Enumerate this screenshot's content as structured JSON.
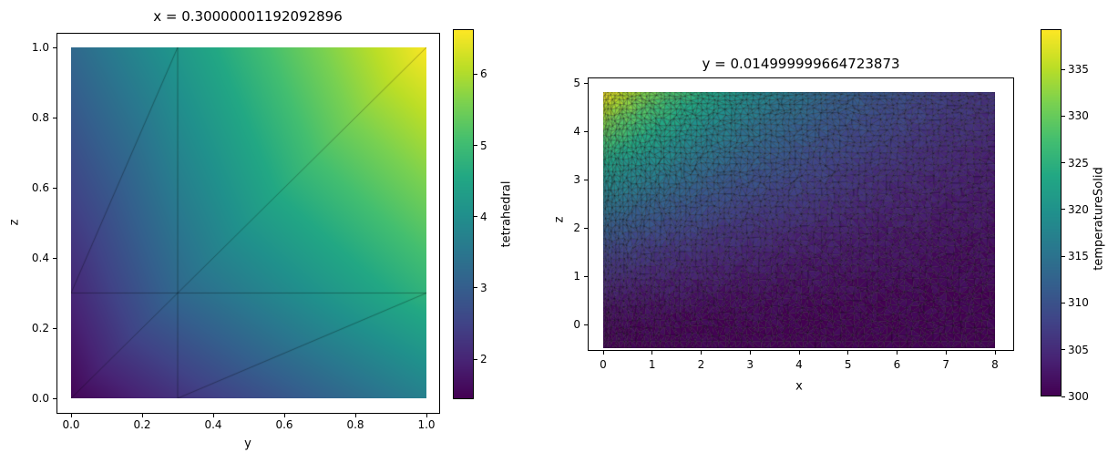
{
  "figure": {
    "background": "#ffffff",
    "text_color": "#000000"
  },
  "chart_data": [
    {
      "id": "left-slice-plot",
      "type": "heatmap",
      "title": "x = 0.30000001192092896",
      "xlabel": "y",
      "ylabel": "z",
      "xlim": [
        0.0,
        1.0
      ],
      "ylim": [
        0.0,
        1.0
      ],
      "xtick_values": [
        0.0,
        0.2,
        0.4,
        0.6,
        0.8,
        1.0
      ],
      "xtick_labels": [
        "0.0",
        "0.2",
        "0.4",
        "0.6",
        "0.8",
        "1.0"
      ],
      "ytick_values": [
        0.0,
        0.2,
        0.4,
        0.6,
        0.8,
        1.0
      ],
      "ytick_labels": [
        "0.0",
        "0.2",
        "0.4",
        "0.6",
        "0.8",
        "1.0"
      ],
      "colormap": "viridis",
      "grid": false,
      "colorbar": {
        "label": "tetrahedral",
        "vmin": 1.44,
        "vmax": 6.63,
        "tick_values": [
          2,
          3,
          4,
          5,
          6
        ],
        "tick_labels": [
          "2",
          "3",
          "4",
          "5",
          "6"
        ]
      },
      "mesh_nodes": [
        {
          "y": 0.0,
          "z": 0.0,
          "value": 1.5
        },
        {
          "y": 0.3,
          "z": 0.0,
          "value": 2.2
        },
        {
          "y": 1.0,
          "z": 0.0,
          "value": 3.7
        },
        {
          "y": 0.0,
          "z": 0.3,
          "value": 2.0
        },
        {
          "y": 0.3,
          "z": 0.3,
          "value": 3.2
        },
        {
          "y": 1.0,
          "z": 0.3,
          "value": 4.8
        },
        {
          "y": 0.0,
          "z": 1.0,
          "value": 3.2
        },
        {
          "y": 0.3,
          "z": 1.0,
          "value": 4.2
        },
        {
          "y": 1.0,
          "z": 1.0,
          "value": 6.6
        }
      ],
      "mesh_triangles": [
        [
          0,
          1,
          4
        ],
        [
          0,
          4,
          3
        ],
        [
          1,
          2,
          5
        ],
        [
          1,
          5,
          4
        ],
        [
          3,
          4,
          7
        ],
        [
          3,
          7,
          6
        ],
        [
          4,
          5,
          8
        ],
        [
          4,
          8,
          7
        ]
      ],
      "mesh_edges": [
        [
          [
            0.0,
            0.3
          ],
          [
            1.0,
            0.3
          ]
        ],
        [
          [
            0.3,
            0.0
          ],
          [
            0.3,
            1.0
          ]
        ],
        [
          [
            0.0,
            0.0
          ],
          [
            1.0,
            1.0
          ]
        ],
        [
          [
            0.0,
            0.3
          ],
          [
            0.3,
            1.0
          ]
        ],
        [
          [
            0.3,
            0.0
          ],
          [
            1.0,
            0.3
          ]
        ]
      ]
    },
    {
      "id": "right-slice-plot",
      "type": "trimesh-heatmap",
      "title": "y = 0.014999999664723873",
      "xlabel": "x",
      "ylabel": "z",
      "xlim": [
        0,
        8
      ],
      "ylim": [
        -0.55,
        5.1
      ],
      "mesh_extent": {
        "x": [
          0,
          8
        ],
        "z": [
          -0.5,
          4.8
        ]
      },
      "xtick_values": [
        0,
        1,
        2,
        3,
        4,
        5,
        6,
        7,
        8
      ],
      "xtick_labels": [
        "0",
        "1",
        "2",
        "3",
        "4",
        "5",
        "6",
        "7",
        "8"
      ],
      "ytick_values": [
        0,
        1,
        2,
        3,
        4,
        5
      ],
      "ytick_labels": [
        "0",
        "1",
        "2",
        "3",
        "4",
        "5"
      ],
      "colormap": "viridis",
      "grid": false,
      "colorbar": {
        "label": "temperatureSolid",
        "vmin": 300,
        "vmax": 339.3,
        "tick_values": [
          300,
          305,
          310,
          315,
          320,
          325,
          330,
          335
        ],
        "tick_labels": [
          "300",
          "305",
          "310",
          "315",
          "320",
          "325",
          "330",
          "335"
        ]
      },
      "field": {
        "description": "temperature hottest at top-left corner, decaying toward right and bottom",
        "base": 300,
        "amplitude": 39.3,
        "x_decay": 4.2,
        "z_offset": 0.5,
        "z_span": 5.3,
        "z_power": 1.6
      }
    }
  ]
}
